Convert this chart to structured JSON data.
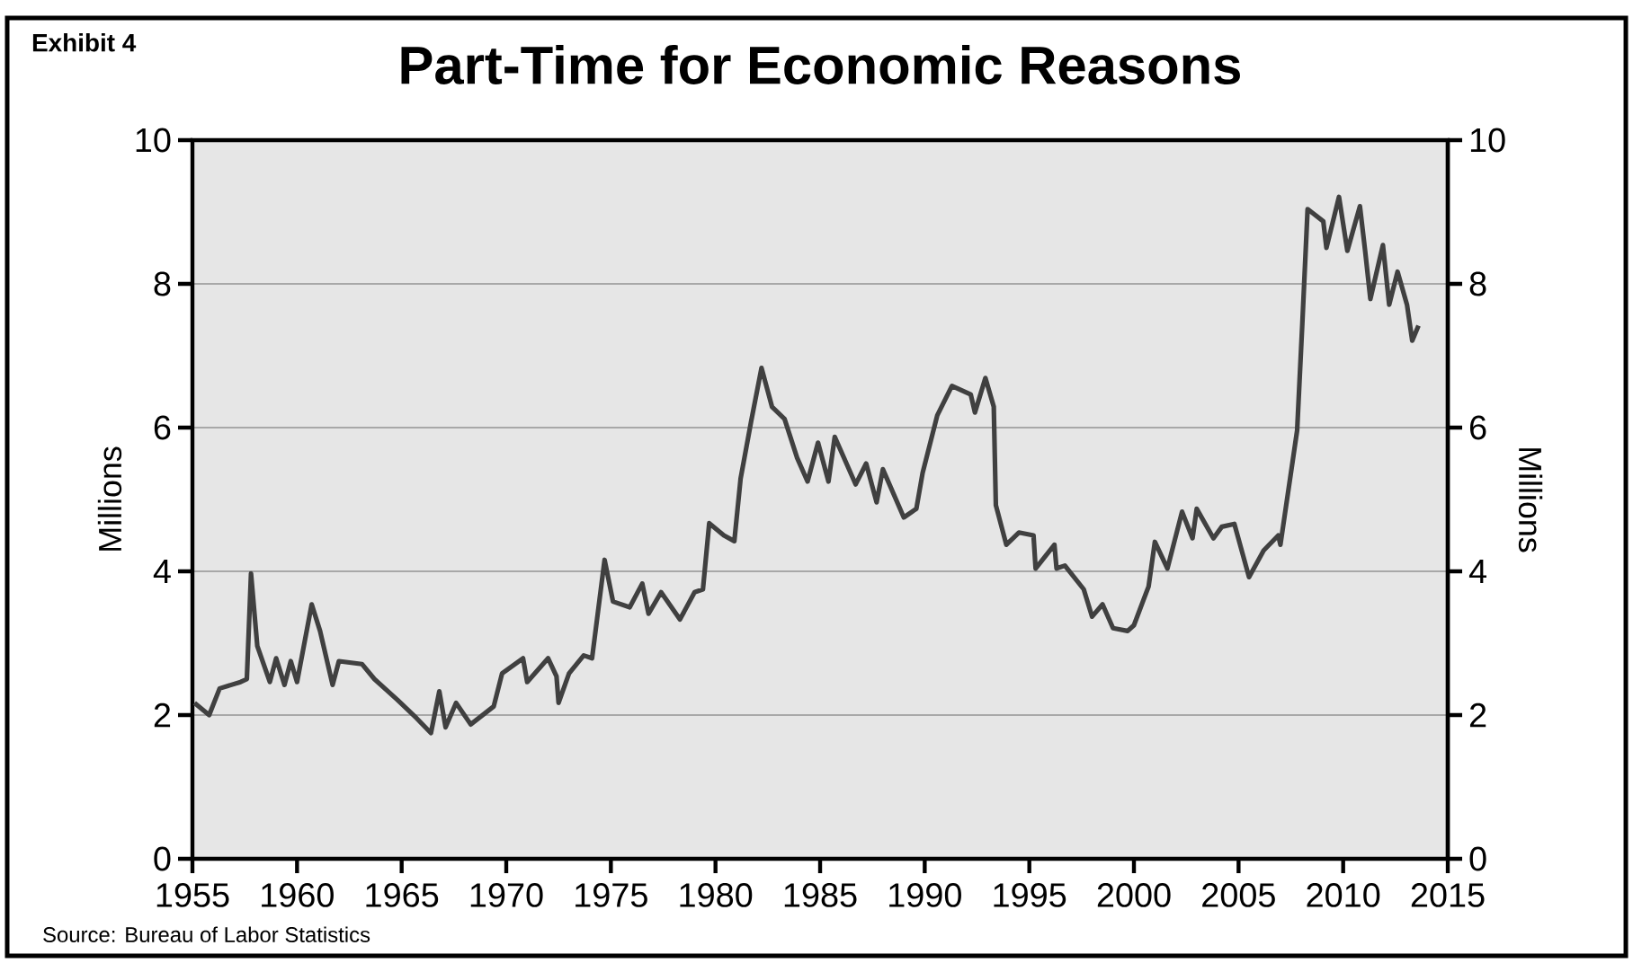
{
  "chart_data": {
    "type": "line",
    "title": "Part-Time for Economic Reasons",
    "ylabel": "Millions",
    "y2label": "Millions",
    "annotations": [
      "Exhibit 4",
      "Source:  Bureau of Labor Statistics"
    ],
    "xlim": [
      1955,
      2015
    ],
    "xticks": [
      1955,
      1960,
      1965,
      1970,
      1975,
      1980,
      1985,
      1990,
      1995,
      2000,
      2005,
      2010,
      2015
    ],
    "ylim": [
      0,
      10
    ],
    "yticks": [
      0,
      2,
      4,
      6,
      8,
      10
    ],
    "y2lim": [
      0,
      10
    ],
    "y2ticks": [
      0,
      2,
      4,
      6,
      8,
      10
    ],
    "grid": "y",
    "series": [
      {
        "color": "#404040",
        "x": [
          1955.1,
          1955.8,
          1956.3,
          1957.3,
          1957.6,
          1957.8,
          1958.1,
          1958.7,
          1959.0,
          1959.4,
          1959.7,
          1960.0,
          1960.7,
          1961.1,
          1961.7,
          1962.0,
          1963.1,
          1963.7,
          1964.8,
          1965.7,
          1966.4,
          1966.8,
          1967.1,
          1967.6,
          1968.3,
          1969.4,
          1969.8,
          1970.8,
          1971.0,
          1972.0,
          1972.4,
          1972.5,
          1973.0,
          1973.7,
          1974.1,
          1974.7,
          1975.1,
          1975.9,
          1976.5,
          1976.8,
          1977.4,
          1978.3,
          1979.0,
          1979.4,
          1979.7,
          1980.4,
          1980.9,
          1981.2,
          1981.7,
          1982.2,
          1982.7,
          1983.3,
          1983.9,
          1984.4,
          1984.9,
          1985.4,
          1985.7,
          1986.7,
          1987.2,
          1987.7,
          1988.0,
          1989.0,
          1989.6,
          1989.9,
          1990.6,
          1991.3,
          1992.2,
          1992.4,
          1992.9,
          1993.3,
          1993.4,
          1993.9,
          1994.5,
          1995.2,
          1995.3,
          1996.2,
          1996.3,
          1996.7,
          1997.6,
          1998.0,
          1998.5,
          1999.0,
          1999.7,
          2000.0,
          2000.7,
          2001.0,
          2001.6,
          2002.3,
          2002.8,
          2003.0,
          2003.8,
          2004.2,
          2004.8,
          2005.5,
          2006.2,
          2006.9,
          2007.0,
          2007.8,
          2008.05,
          2008.3,
          2009.05,
          2009.2,
          2009.8,
          2010.2,
          2010.8,
          2011.05,
          2011.3,
          2011.9,
          2012.2,
          2012.6,
          2013.05,
          2013.3,
          2013.6
        ],
        "values": [
          2.17,
          2.0,
          2.37,
          2.46,
          2.5,
          3.97,
          2.96,
          2.46,
          2.79,
          2.42,
          2.75,
          2.46,
          3.54,
          3.17,
          2.42,
          2.75,
          2.71,
          2.5,
          2.21,
          1.96,
          1.75,
          2.33,
          1.83,
          2.17,
          1.87,
          2.12,
          2.58,
          2.79,
          2.46,
          2.79,
          2.54,
          2.17,
          2.58,
          2.83,
          2.79,
          4.16,
          3.58,
          3.5,
          3.83,
          3.41,
          3.71,
          3.33,
          3.71,
          3.75,
          4.67,
          4.5,
          4.42,
          5.29,
          6.08,
          6.83,
          6.29,
          6.12,
          5.58,
          5.25,
          5.79,
          5.25,
          5.87,
          5.21,
          5.5,
          4.96,
          5.42,
          4.75,
          4.87,
          5.37,
          6.17,
          6.58,
          6.46,
          6.21,
          6.69,
          6.29,
          4.92,
          4.37,
          4.54,
          4.5,
          4.04,
          4.37,
          4.04,
          4.08,
          3.75,
          3.37,
          3.54,
          3.21,
          3.17,
          3.25,
          3.79,
          4.41,
          4.04,
          4.83,
          4.46,
          4.87,
          4.46,
          4.62,
          4.66,
          3.92,
          4.29,
          4.5,
          4.37,
          5.96,
          7.46,
          9.04,
          8.87,
          8.5,
          9.21,
          8.46,
          9.08,
          8.46,
          7.79,
          8.54,
          7.71,
          8.17,
          7.71,
          7.21,
          7.42
        ]
      }
    ]
  }
}
